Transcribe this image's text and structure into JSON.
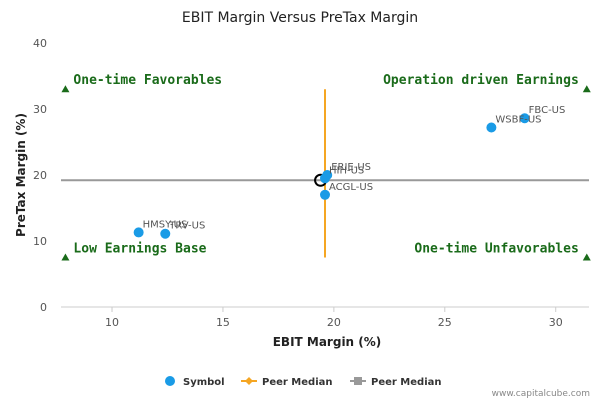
{
  "chart_data": {
    "type": "scatter",
    "title": "EBIT Margin Versus PreTax Margin",
    "xlabel": "EBIT Margin (%)",
    "ylabel": "PreTax Margin (%)",
    "xlim": [
      7.7,
      31.5
    ],
    "ylim": [
      0,
      40
    ],
    "xticks": [
      10,
      15,
      20,
      25,
      30
    ],
    "yticks": [
      0,
      10,
      20,
      30,
      40
    ],
    "grid": false,
    "points": [
      {
        "label": "FBC-US",
        "x": 28.6,
        "y": 28.6
      },
      {
        "label": "WSBF-US",
        "x": 27.1,
        "y": 27.2
      },
      {
        "label": "ERIE-US",
        "x": 19.7,
        "y": 20.0
      },
      {
        "label": "HIH-US",
        "x": 19.6,
        "y": 19.5
      },
      {
        "label": "ACGL-US",
        "x": 19.6,
        "y": 17.0
      },
      {
        "label": "HMSY-US",
        "x": 11.2,
        "y": 11.3
      },
      {
        "label": "TRV-US",
        "x": 12.4,
        "y": 11.1
      }
    ],
    "highlight": {
      "x": 19.4,
      "y": 19.2
    },
    "peer_median_x": {
      "value": 19.6,
      "y_range": [
        7.5,
        33.0
      ]
    },
    "peer_median_y": {
      "value": 19.2
    },
    "quadrants": [
      {
        "text": "One-time Favorables",
        "position": "top-left",
        "marker_x": 7.9,
        "marker_y": 33
      },
      {
        "text": "Operation driven Earnings",
        "position": "top-right",
        "marker_x": 31.4,
        "marker_y": 33
      },
      {
        "text": "Low Earnings Base",
        "position": "bottom-left",
        "marker_x": 7.9,
        "marker_y": 7.5
      },
      {
        "text": "One-time Unfavorables",
        "position": "bottom-right",
        "marker_x": 31.4,
        "marker_y": 7.5
      }
    ],
    "legend": {
      "placement": "bottom",
      "items": [
        {
          "label": "Symbol",
          "kind": "dot",
          "color": "#1a9be6"
        },
        {
          "label": "Peer Median",
          "kind": "line",
          "color": "#f5a623"
        },
        {
          "label": "Peer Median",
          "kind": "line",
          "color": "#999999"
        }
      ]
    },
    "colors": {
      "point": "#1a9be6",
      "median_x": "#f5a623",
      "median_y": "#999999",
      "quadrant": "#1a6b1a"
    }
  },
  "watermark": "www.capitalcube.com"
}
